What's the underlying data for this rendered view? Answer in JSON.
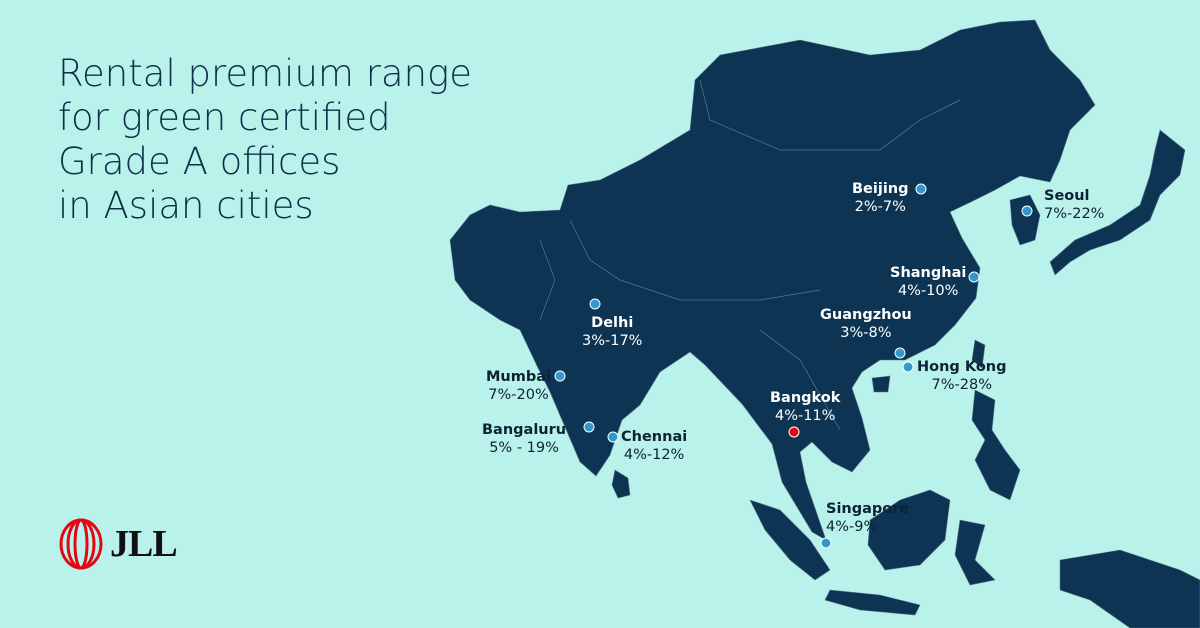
{
  "title_lines": [
    "Rental premium range",
    "for green certified",
    "Grade A offices",
    "in Asian cities"
  ],
  "logo": {
    "text": "JLL",
    "color": "#e30613"
  },
  "colors": {
    "sea": "#b9f2ea",
    "land": "#0d3452",
    "city_dot": "#3399cc",
    "highlight_dot": "#e30613"
  },
  "cities": [
    {
      "name": "Beijing",
      "range": "2%-7%"
    },
    {
      "name": "Seoul",
      "range": "7%-22%"
    },
    {
      "name": "Shanghai",
      "range": "4%-10%"
    },
    {
      "name": "Guangzhou",
      "range": "3%-8%"
    },
    {
      "name": "Hong Kong",
      "range": "7%-28%"
    },
    {
      "name": "Delhi",
      "range": "3%-17%"
    },
    {
      "name": "Mumbai",
      "range": "7%-20%"
    },
    {
      "name": "Bangaluru",
      "range": "5% - 19%"
    },
    {
      "name": "Chennai",
      "range": "4%-12%"
    },
    {
      "name": "Bangkok",
      "range": "4%-11%"
    },
    {
      "name": "Singapore",
      "range": "4%-9%"
    }
  ]
}
